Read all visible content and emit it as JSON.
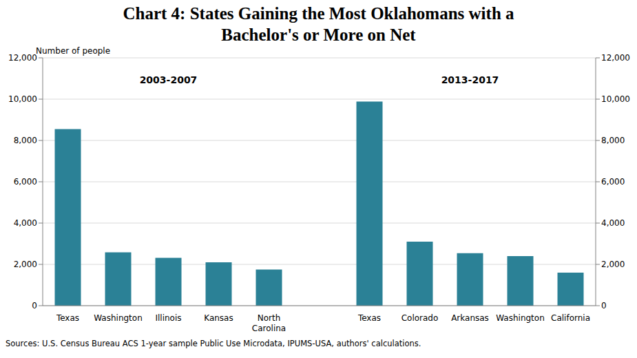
{
  "chart_data": {
    "type": "bar",
    "title": "Chart 4: States Gaining the Most Oklahomans with a Bachelor's or More on Net",
    "y_label": "Number of people",
    "annotations": [
      "2003-2007",
      "2013-2017"
    ],
    "source": "Sources: U.S. Census Bureau ACS 1-year sample Public Use Microdata, IPUMS-USA, authors' calculations.",
    "categories": [
      "Texas",
      "Washington",
      "Illinois",
      "Kansas",
      "North Carolina",
      null,
      "Texas",
      "Colorado",
      "Arkansas",
      "Washington",
      "California"
    ],
    "values": [
      8550,
      2580,
      2320,
      2100,
      1750,
      null,
      9880,
      3100,
      2540,
      2400,
      1600
    ],
    "color": "#2b8196",
    "ylim": [
      0,
      12000
    ],
    "yticks": [
      0,
      {
        "value": 2000,
        "label": "2,000"
      },
      {
        "value": 4000,
        "label": "4,000"
      },
      {
        "value": 6000,
        "label": "6,000"
      },
      {
        "value": 8000,
        "label": "8,000"
      },
      {
        "value": 10000,
        "label": "10,000"
      },
      {
        "value": 12000,
        "label": "12,000"
      }
    ],
    "y2lim": [
      0,
      12000
    ],
    "y2ticks": [
      0,
      {
        "value": 2000,
        "label": "2,000"
      },
      {
        "value": 4000,
        "label": "4,000"
      },
      {
        "value": 6000,
        "label": "6,000"
      },
      {
        "value": 8000,
        "label": "8,000"
      },
      {
        "value": 10000,
        "label": "10,000"
      },
      {
        "value": 12000,
        "label": "12,000"
      }
    ],
    "grid": true
  }
}
